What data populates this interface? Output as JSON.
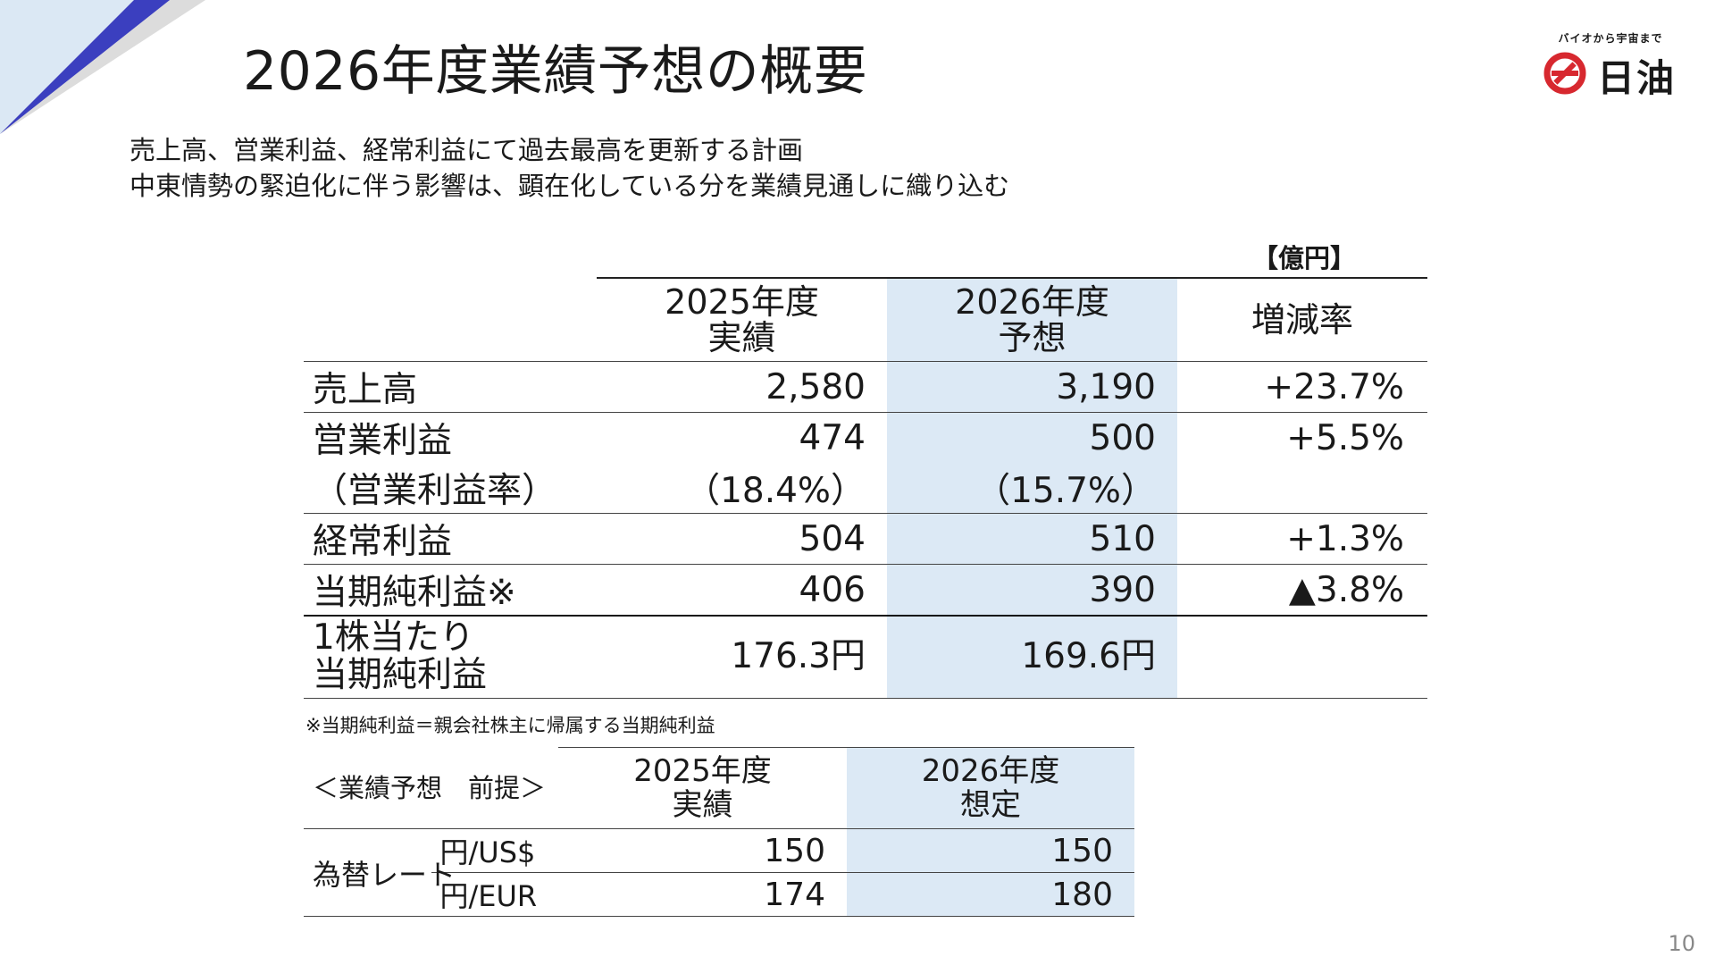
{
  "title": "2026年度業績予想の概要",
  "logo": {
    "tagline": "バイオから宇宙まで",
    "name": "日油"
  },
  "lead": {
    "line1": "売上高、営業利益、経常利益にて過去最高を更新する計画",
    "line2": "中東情勢の緊迫化に伴う影響は、顕在化している分を業績見通しに織り込む"
  },
  "unit": "【億円】",
  "main_table": {
    "col1": {
      "line1": "2025年度",
      "line2": "実績"
    },
    "col2": {
      "line1": "2026年度",
      "line2": "予想"
    },
    "col3": "増減率",
    "rows": [
      {
        "label": "売上高",
        "v2025": "2,580",
        "v2026": "3,190",
        "change": "+23.7%"
      },
      {
        "label": "営業利益",
        "v2025": "474",
        "v2026": "500",
        "change": "+5.5%"
      },
      {
        "label": "（営業利益率）",
        "v2025": "（18.4%）",
        "v2026": "（15.7%）",
        "change": ""
      },
      {
        "label": "経常利益",
        "v2025": "504",
        "v2026": "510",
        "change": "+1.3%"
      },
      {
        "label": "当期純利益※",
        "v2025": "406",
        "v2026": "390",
        "change": "▲3.8%"
      }
    ],
    "eps": {
      "label_line1": "1株当たり",
      "label_line2": "当期純利益",
      "v2025": "176.3円",
      "v2026": "169.6円",
      "change": ""
    }
  },
  "note": "※当期純利益＝親会社株主に帰属する当期純利益",
  "fx_table": {
    "label": "＜業績予想　前提＞",
    "col1": {
      "line1": "2025年度",
      "line2": "実績"
    },
    "col2": {
      "line1": "2026年度",
      "line2": "想定"
    },
    "group": "為替レート",
    "rows": [
      {
        "pair": "円/US$",
        "v2025": "150",
        "v2026": "150"
      },
      {
        "pair": "円/EUR",
        "v2025": "174",
        "v2026": "180"
      }
    ]
  },
  "page_number": "10",
  "colors": {
    "accent_blue": "#3b3fbf",
    "highlight": "#dce9f5",
    "logo_red": "#d7282f"
  }
}
